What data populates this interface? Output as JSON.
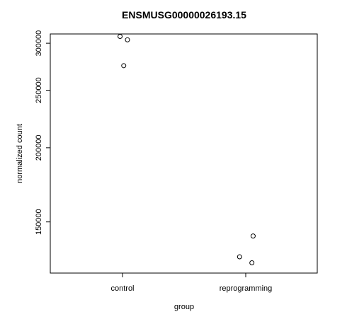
{
  "chart_data": {
    "type": "scatter",
    "title": "ENSMUSG00000026193.15",
    "xlabel": "group",
    "ylabel": "normalized count",
    "categories": [
      "control",
      "reprogramming"
    ],
    "ylim": [
      123000,
      311000
    ],
    "y_scale": "log",
    "y_ticks": [
      150000,
      200000,
      250000,
      300000
    ],
    "y_tick_labels": [
      "150000",
      "200000",
      "250000",
      "300000"
    ],
    "grid": false,
    "points": [
      {
        "group": "control",
        "jitter": -0.02,
        "y": 308000
      },
      {
        "group": "control",
        "jitter": 0.04,
        "y": 304000
      },
      {
        "group": "control",
        "jitter": 0.01,
        "y": 275000
      },
      {
        "group": "reprogramming",
        "jitter": 0.06,
        "y": 142000
      },
      {
        "group": "reprogramming",
        "jitter": -0.05,
        "y": 131000
      },
      {
        "group": "reprogramming",
        "jitter": 0.05,
        "y": 128000
      }
    ]
  }
}
